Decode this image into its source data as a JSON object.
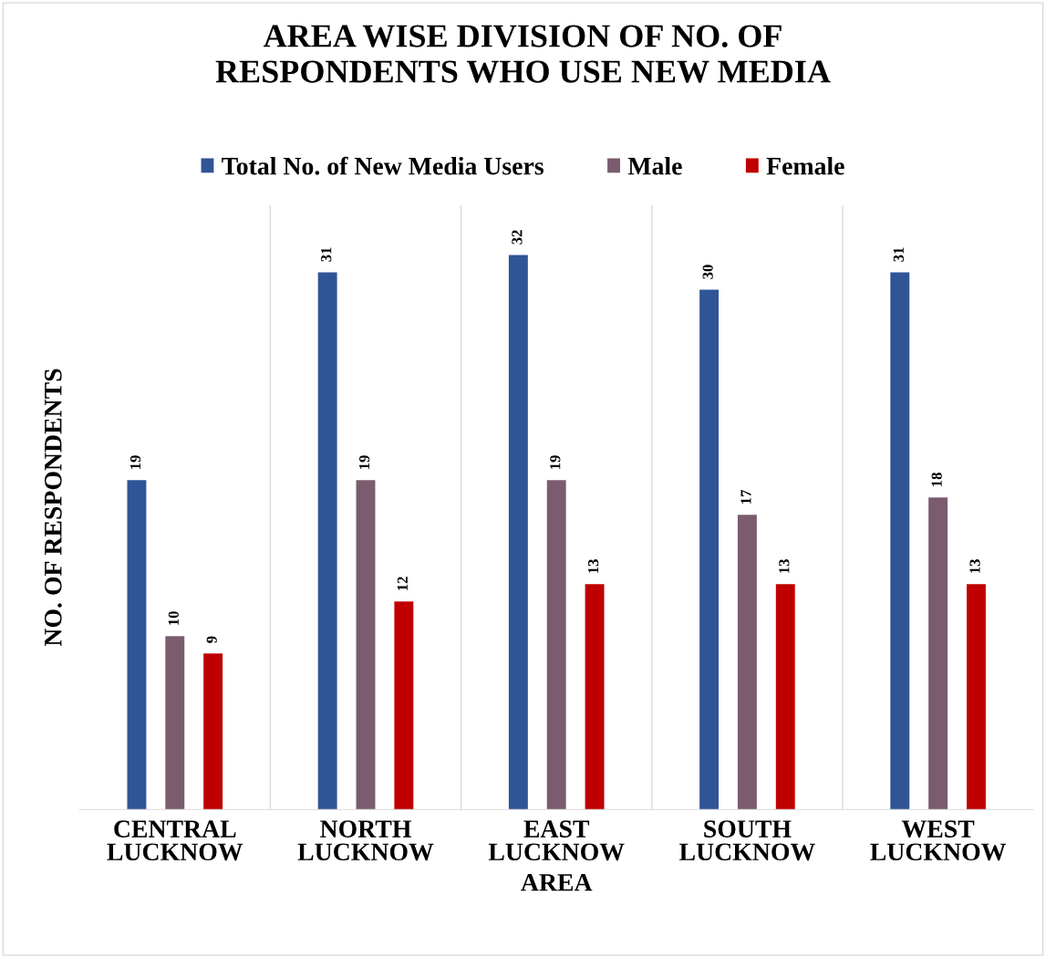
{
  "chart_data": {
    "type": "bar",
    "title": "AREA WISE DIVISION OF NO. OF\nRESPONDENTS WHO USE NEW MEDIA",
    "xlabel": "AREA",
    "ylabel": "NO. OF RESPONDENTS",
    "categories": [
      "CENTRAL\nLUCKNOW",
      "NORTH\nLUCKNOW",
      "EAST\nLUCKNOW",
      "SOUTH\nLUCKNOW",
      "WEST\nLUCKNOW"
    ],
    "series": [
      {
        "name": "Total No. of New Media Users",
        "color": "#2f5597",
        "values": [
          19,
          31,
          32,
          30,
          31
        ]
      },
      {
        "name": "Male",
        "color": "#7a5c6e",
        "values": [
          10,
          19,
          19,
          17,
          18
        ]
      },
      {
        "name": "Female",
        "color": "#c00000",
        "values": [
          9,
          12,
          13,
          13,
          13
        ]
      }
    ],
    "data_labels": true,
    "grid": "x",
    "legend": "top",
    "tick_labels": "x"
  }
}
